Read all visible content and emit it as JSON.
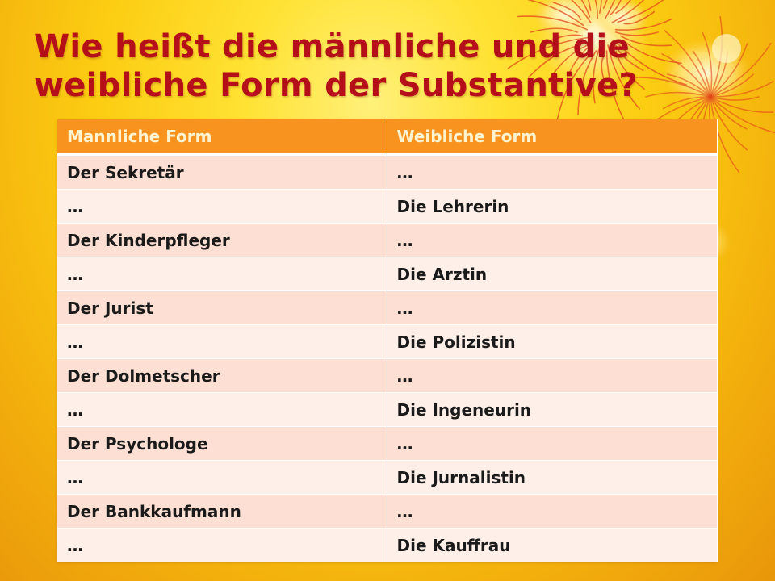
{
  "slide": {
    "title": "Wie heißt die männliche und die weibliche Form der Substantive?",
    "colors": {
      "title": "#b5101a",
      "header_bg": "#f7931e",
      "header_text": "#fff3d0",
      "row_dark": "#fde0d3",
      "row_light": "#feefe8",
      "background": "#fccd12"
    },
    "decoration": "flower-graphic"
  },
  "table": {
    "headers": [
      "Mannliche Form",
      "Weibliche Form"
    ],
    "rows": [
      [
        "Der Sekretär",
        "…"
      ],
      [
        "…",
        "Die Lehrerin"
      ],
      [
        "Der Kinderpfleger",
        "…"
      ],
      [
        "…",
        "Die Arztin"
      ],
      [
        "Der Jurist",
        "…"
      ],
      [
        "…",
        "Die Polizistin"
      ],
      [
        "Der Dolmetscher",
        "…"
      ],
      [
        "…",
        "Die Ingeneurin"
      ],
      [
        "Der Psychologe",
        "…"
      ],
      [
        "…",
        "Die Jurnalistin"
      ],
      [
        "Der Bankkaufmann",
        "…"
      ],
      [
        "…",
        "Die Kauffrau"
      ]
    ]
  }
}
